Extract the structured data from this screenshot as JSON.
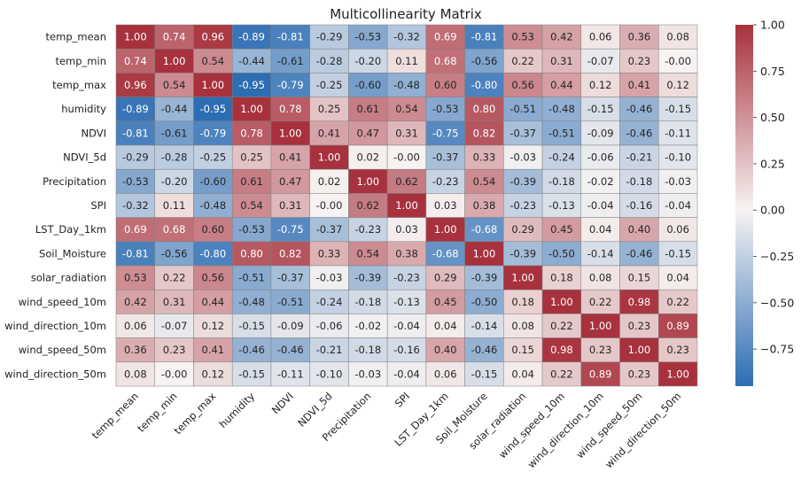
{
  "chart_data": {
    "type": "heatmap",
    "title": "Multicollinearity Matrix",
    "labels": [
      "temp_mean",
      "temp_min",
      "temp_max",
      "humidity",
      "NDVI",
      "NDVI_5d",
      "Precipitation",
      "SPI",
      "LST_Day_1km",
      "Soil_Moisture",
      "solar_radiation",
      "wind_speed_10m",
      "wind_direction_10m",
      "wind_speed_50m",
      "wind_direction_50m"
    ],
    "values": [
      [
        1.0,
        0.74,
        0.96,
        -0.89,
        -0.81,
        -0.29,
        -0.53,
        -0.32,
        0.69,
        -0.81,
        0.53,
        0.42,
        0.06,
        0.36,
        0.08
      ],
      [
        0.74,
        1.0,
        0.54,
        -0.44,
        -0.61,
        -0.28,
        -0.2,
        0.11,
        0.68,
        -0.56,
        0.22,
        0.31,
        -0.07,
        0.23,
        -0.0
      ],
      [
        0.96,
        0.54,
        1.0,
        -0.95,
        -0.79,
        -0.25,
        -0.6,
        -0.48,
        0.6,
        -0.8,
        0.56,
        0.44,
        0.12,
        0.41,
        0.12
      ],
      [
        -0.89,
        -0.44,
        -0.95,
        1.0,
        0.78,
        0.25,
        0.61,
        0.54,
        -0.53,
        0.8,
        -0.51,
        -0.48,
        -0.15,
        -0.46,
        -0.15
      ],
      [
        -0.81,
        -0.61,
        -0.79,
        0.78,
        1.0,
        0.41,
        0.47,
        0.31,
        -0.75,
        0.82,
        -0.37,
        -0.51,
        -0.09,
        -0.46,
        -0.11
      ],
      [
        -0.29,
        -0.28,
        -0.25,
        0.25,
        0.41,
        1.0,
        0.02,
        -0.0,
        -0.37,
        0.33,
        -0.03,
        -0.24,
        -0.06,
        -0.21,
        -0.1
      ],
      [
        -0.53,
        -0.2,
        -0.6,
        0.61,
        0.47,
        0.02,
        1.0,
        0.62,
        -0.23,
        0.54,
        -0.39,
        -0.18,
        -0.02,
        -0.18,
        -0.03
      ],
      [
        -0.32,
        0.11,
        -0.48,
        0.54,
        0.31,
        -0.0,
        0.62,
        1.0,
        0.03,
        0.38,
        -0.23,
        -0.13,
        -0.04,
        -0.16,
        -0.04
      ],
      [
        0.69,
        0.68,
        0.6,
        -0.53,
        -0.75,
        -0.37,
        -0.23,
        0.03,
        1.0,
        -0.68,
        0.29,
        0.45,
        0.04,
        0.4,
        0.06
      ],
      [
        -0.81,
        -0.56,
        -0.8,
        0.8,
        0.82,
        0.33,
        0.54,
        0.38,
        -0.68,
        1.0,
        -0.39,
        -0.5,
        -0.14,
        -0.46,
        -0.15
      ],
      [
        0.53,
        0.22,
        0.56,
        -0.51,
        -0.37,
        -0.03,
        -0.39,
        -0.23,
        0.29,
        -0.39,
        1.0,
        0.18,
        0.08,
        0.15,
        0.04
      ],
      [
        0.42,
        0.31,
        0.44,
        -0.48,
        -0.51,
        -0.24,
        -0.18,
        -0.13,
        0.45,
        -0.5,
        0.18,
        1.0,
        0.22,
        0.98,
        0.22
      ],
      [
        0.06,
        -0.07,
        0.12,
        -0.15,
        -0.09,
        -0.06,
        -0.02,
        -0.04,
        0.04,
        -0.14,
        0.08,
        0.22,
        1.0,
        0.23,
        0.89
      ],
      [
        0.36,
        0.23,
        0.41,
        -0.46,
        -0.46,
        -0.21,
        -0.18,
        -0.16,
        0.4,
        -0.46,
        0.15,
        0.98,
        0.23,
        1.0,
        0.23
      ],
      [
        0.08,
        -0.0,
        0.12,
        -0.15,
        -0.11,
        -0.1,
        -0.03,
        -0.04,
        0.06,
        -0.15,
        0.04,
        0.22,
        0.89,
        0.23,
        1.0
      ]
    ],
    "colorbar": {
      "vmin": -0.95,
      "vmax": 1.0,
      "ticks": [
        1.0,
        0.75,
        0.5,
        0.25,
        0.0,
        -0.25,
        -0.5,
        -0.75
      ],
      "tick_labels": [
        "1.00",
        "0.75",
        "0.50",
        "0.25",
        "0.00",
        "−0.25",
        "−0.50",
        "−0.75"
      ]
    },
    "colors": {
      "negative": "#2c6db3",
      "neutral": "#f7f3f2",
      "positive": "#a7323d",
      "cell_border": "#7f7f7f"
    },
    "annotation_format": "2 decimals",
    "xlabel": "",
    "ylabel": ""
  }
}
